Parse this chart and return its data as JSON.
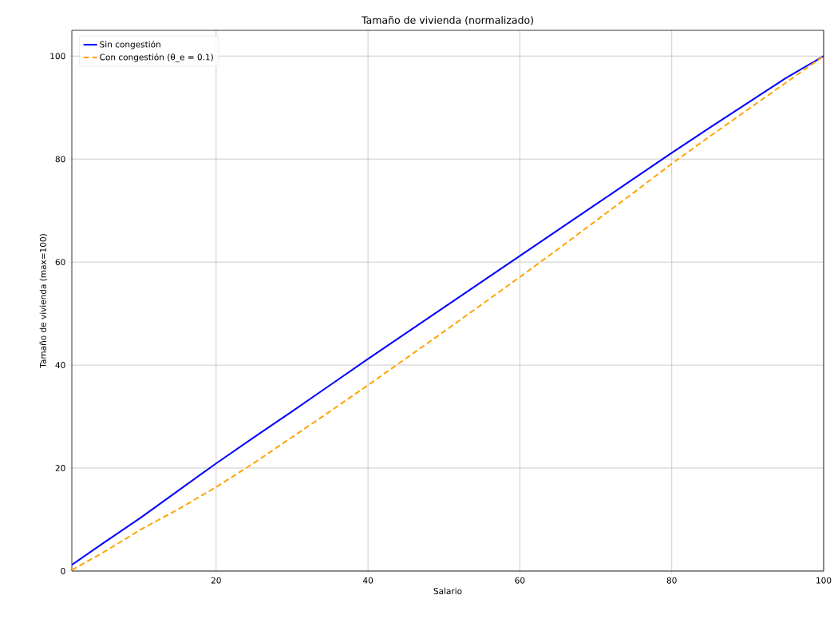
{
  "chart_data": {
    "type": "line",
    "title": "Tamaño de vivienda (normalizado)",
    "xlabel": "Salario",
    "ylabel": "Tamaño de vivienda (max=100)",
    "xlim": [
      1,
      100
    ],
    "ylim": [
      0,
      105
    ],
    "xticks": [
      20,
      40,
      60,
      80,
      100
    ],
    "yticks": [
      0,
      20,
      40,
      60,
      80,
      100
    ],
    "grid": true,
    "legend": "top left",
    "x": [
      1,
      5,
      10,
      15,
      20,
      25,
      30,
      35,
      40,
      45,
      50,
      55,
      60,
      65,
      70,
      75,
      80,
      85,
      90,
      95,
      100
    ],
    "series": [
      {
        "name": "Sin congestión",
        "color": "#0000ff",
        "line_style": "solid",
        "values": [
          1.2,
          5.3,
          10.3,
          15.6,
          20.9,
          26,
          31,
          36.1,
          41.2,
          46.2,
          51.2,
          56.2,
          61.2,
          66.2,
          71.2,
          76.2,
          81.2,
          86.1,
          90.9,
          95.7,
          100
        ]
      },
      {
        "name": "Con congestión (θ_e = 0.1)",
        "color": "#ffa500",
        "line_style": "dashed",
        "values": [
          0.2,
          3.5,
          8,
          12,
          16.3,
          21,
          26,
          31,
          36.1,
          41.3,
          46.5,
          51.8,
          57.1,
          62.5,
          68,
          73.5,
          79.1,
          84.4,
          89.6,
          94.8,
          100
        ]
      }
    ]
  }
}
